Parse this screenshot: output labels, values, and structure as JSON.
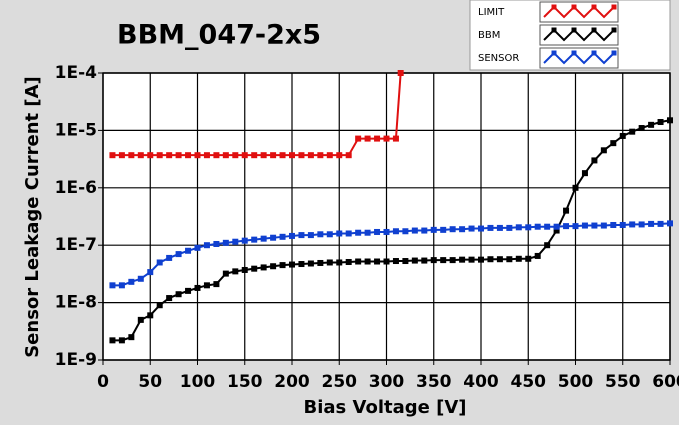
{
  "chart_data": {
    "type": "line",
    "title": "BBM_047-2x5",
    "x_label": "Bias Voltage [V]",
    "y_label": "Sensor Leakage Current [A]",
    "xlim": [
      0,
      600
    ],
    "xticks": [
      0,
      50,
      100,
      150,
      200,
      250,
      300,
      350,
      400,
      450,
      500,
      550,
      600
    ],
    "ylim": [
      1e-09,
      0.0001
    ],
    "log_y": true,
    "grid": true,
    "legend": "top-right",
    "yticks": [
      {
        "value": 1e-09,
        "label": "1E-9"
      },
      {
        "value": 1e-08,
        "label": "1E-8"
      },
      {
        "value": 1e-07,
        "label": "1E-7"
      },
      {
        "value": 1e-06,
        "label": "1E-6"
      },
      {
        "value": 1e-05,
        "label": "1E-5"
      },
      {
        "value": 0.0001,
        "label": "1E-4"
      }
    ],
    "series": [
      {
        "name": "LIMIT",
        "color": "#e01010",
        "x": [
          10,
          20,
          30,
          40,
          50,
          60,
          70,
          80,
          90,
          100,
          110,
          120,
          130,
          140,
          150,
          160,
          170,
          180,
          190,
          200,
          210,
          220,
          230,
          240,
          250,
          260,
          270,
          280,
          290,
          300,
          310,
          315
        ],
        "values": [
          3.7e-06,
          3.7e-06,
          3.7e-06,
          3.7e-06,
          3.7e-06,
          3.7e-06,
          3.7e-06,
          3.7e-06,
          3.7e-06,
          3.7e-06,
          3.7e-06,
          3.7e-06,
          3.7e-06,
          3.7e-06,
          3.7e-06,
          3.7e-06,
          3.7e-06,
          3.7e-06,
          3.7e-06,
          3.7e-06,
          3.7e-06,
          3.7e-06,
          3.7e-06,
          3.7e-06,
          3.7e-06,
          3.7e-06,
          7.2e-06,
          7.2e-06,
          7.2e-06,
          7.2e-06,
          7.2e-06,
          0.0001
        ]
      },
      {
        "name": "BBM",
        "color": "#000000",
        "x": [
          10,
          20,
          30,
          40,
          50,
          60,
          70,
          80,
          90,
          100,
          110,
          120,
          130,
          140,
          150,
          160,
          170,
          180,
          190,
          200,
          210,
          220,
          230,
          240,
          250,
          260,
          270,
          280,
          290,
          300,
          310,
          320,
          330,
          340,
          350,
          360,
          370,
          380,
          390,
          400,
          410,
          420,
          430,
          440,
          450,
          460,
          470,
          480,
          490,
          500,
          510,
          520,
          530,
          540,
          550,
          560,
          570,
          580,
          590,
          600
        ],
        "values": [
          2.2e-09,
          2.2e-09,
          2.5e-09,
          5e-09,
          6e-09,
          9e-09,
          1.2e-08,
          1.4e-08,
          1.6e-08,
          1.8e-08,
          2e-08,
          2.1e-08,
          3.2e-08,
          3.5e-08,
          3.7e-08,
          3.9e-08,
          4.1e-08,
          4.3e-08,
          4.5e-08,
          4.6e-08,
          4.7e-08,
          4.8e-08,
          4.9e-08,
          5e-08,
          5e-08,
          5.1e-08,
          5.2e-08,
          5.2e-08,
          5.2e-08,
          5.2e-08,
          5.3e-08,
          5.3e-08,
          5.4e-08,
          5.4e-08,
          5.5e-08,
          5.5e-08,
          5.5e-08,
          5.6e-08,
          5.6e-08,
          5.6e-08,
          5.7e-08,
          5.7e-08,
          5.7e-08,
          5.8e-08,
          5.8e-08,
          6.5e-08,
          1e-07,
          1.8e-07,
          4e-07,
          1e-06,
          1.8e-06,
          3e-06,
          4.5e-06,
          6e-06,
          8e-06,
          9.5e-06,
          1.1e-05,
          1.25e-05,
          1.4e-05,
          1.5e-05
        ]
      },
      {
        "name": "SENSOR",
        "color": "#1040d0",
        "x": [
          10,
          20,
          30,
          40,
          50,
          60,
          70,
          80,
          90,
          100,
          110,
          120,
          130,
          140,
          150,
          160,
          170,
          180,
          190,
          200,
          210,
          220,
          230,
          240,
          250,
          260,
          270,
          280,
          290,
          300,
          310,
          320,
          330,
          340,
          350,
          360,
          370,
          380,
          390,
          400,
          410,
          420,
          430,
          440,
          450,
          460,
          470,
          480,
          490,
          500,
          510,
          520,
          530,
          540,
          550,
          560,
          570,
          580,
          590,
          600
        ],
        "values": [
          2e-08,
          2e-08,
          2.3e-08,
          2.6e-08,
          3.4e-08,
          5e-08,
          6e-08,
          7e-08,
          8e-08,
          9e-08,
          1e-07,
          1.05e-07,
          1.1e-07,
          1.15e-07,
          1.2e-07,
          1.25e-07,
          1.3e-07,
          1.35e-07,
          1.4e-07,
          1.45e-07,
          1.5e-07,
          1.5e-07,
          1.55e-07,
          1.55e-07,
          1.6e-07,
          1.6e-07,
          1.65e-07,
          1.65e-07,
          1.7e-07,
          1.7e-07,
          1.75e-07,
          1.75e-07,
          1.8e-07,
          1.8e-07,
          1.85e-07,
          1.85e-07,
          1.9e-07,
          1.9e-07,
          1.95e-07,
          1.95e-07,
          2e-07,
          2e-07,
          2e-07,
          2.05e-07,
          2.05e-07,
          2.1e-07,
          2.1e-07,
          2.1e-07,
          2.15e-07,
          2.15e-07,
          2.2e-07,
          2.2e-07,
          2.2e-07,
          2.25e-07,
          2.25e-07,
          2.3e-07,
          2.3e-07,
          2.35e-07,
          2.35e-07,
          2.4e-07
        ]
      }
    ]
  }
}
